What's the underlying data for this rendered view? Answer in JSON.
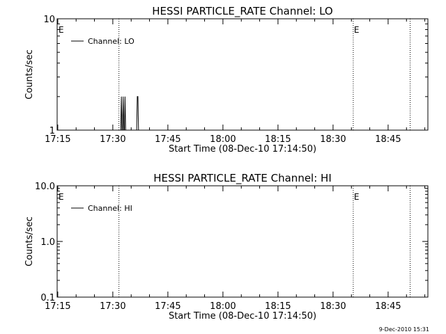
{
  "chart_data": [
    {
      "type": "line",
      "title": "HESSI PARTICLE_RATE Channel: LO",
      "xlabel": "Start Time (08-Dec-10 17:14:50)",
      "ylabel": "Counts/sec",
      "x_tick_labels": [
        "17:15",
        "17:30",
        "17:45",
        "18:00",
        "18:15",
        "18:30",
        "18:45"
      ],
      "y_tick_labels": [
        "1",
        "10"
      ],
      "y_scale": "log",
      "ylim": [
        1,
        10
      ],
      "xlim": [
        "17:14:50",
        "18:55:50"
      ],
      "legend": {
        "entries": [
          "Channel: LO"
        ],
        "placement": "top-left"
      },
      "event_markers": [
        {
          "time": "17:31:40",
          "label": ""
        },
        {
          "time": "18:35:30",
          "label": "E"
        },
        {
          "time": "18:51:00",
          "label": ""
        }
      ],
      "left_edge_marker_label": "E",
      "series": [
        {
          "name": "Channel: LO",
          "x": [
            "17:32:10",
            "17:32:20",
            "17:32:30",
            "17:32:40",
            "17:32:50",
            "17:33:00",
            "17:33:10",
            "17:33:20",
            "17:33:30",
            "17:33:40",
            "17:33:50",
            "17:34:00",
            "17:34:10",
            "17:36:20",
            "17:36:30",
            "17:36:40",
            "17:36:50",
            "17:37:00"
          ],
          "values": [
            1,
            2,
            1,
            1,
            2,
            1,
            1,
            2,
            1,
            1,
            1,
            1,
            1,
            1,
            1,
            2,
            2,
            1
          ]
        }
      ]
    },
    {
      "type": "line",
      "title": "HESSI PARTICLE_RATE Channel: HI",
      "xlabel": "Start Time (08-Dec-10 17:14:50)",
      "ylabel": "Counts/sec",
      "x_tick_labels": [
        "17:15",
        "17:30",
        "17:45",
        "18:00",
        "18:15",
        "18:30",
        "18:45"
      ],
      "y_tick_labels": [
        "0.1",
        "1.0",
        "10.0"
      ],
      "y_scale": "log",
      "ylim": [
        0.1,
        10
      ],
      "xlim": [
        "17:14:50",
        "18:55:50"
      ],
      "legend": {
        "entries": [
          "Channel: HI"
        ],
        "placement": "top-left"
      },
      "event_markers": [
        {
          "time": "17:31:40",
          "label": ""
        },
        {
          "time": "18:35:30",
          "label": "E"
        },
        {
          "time": "18:51:00",
          "label": ""
        }
      ],
      "left_edge_marker_label": "E",
      "series": [
        {
          "name": "Channel: HI",
          "x": [],
          "values": []
        }
      ]
    }
  ],
  "footer": {
    "timestamp": "9-Dec-2010 15:31"
  }
}
